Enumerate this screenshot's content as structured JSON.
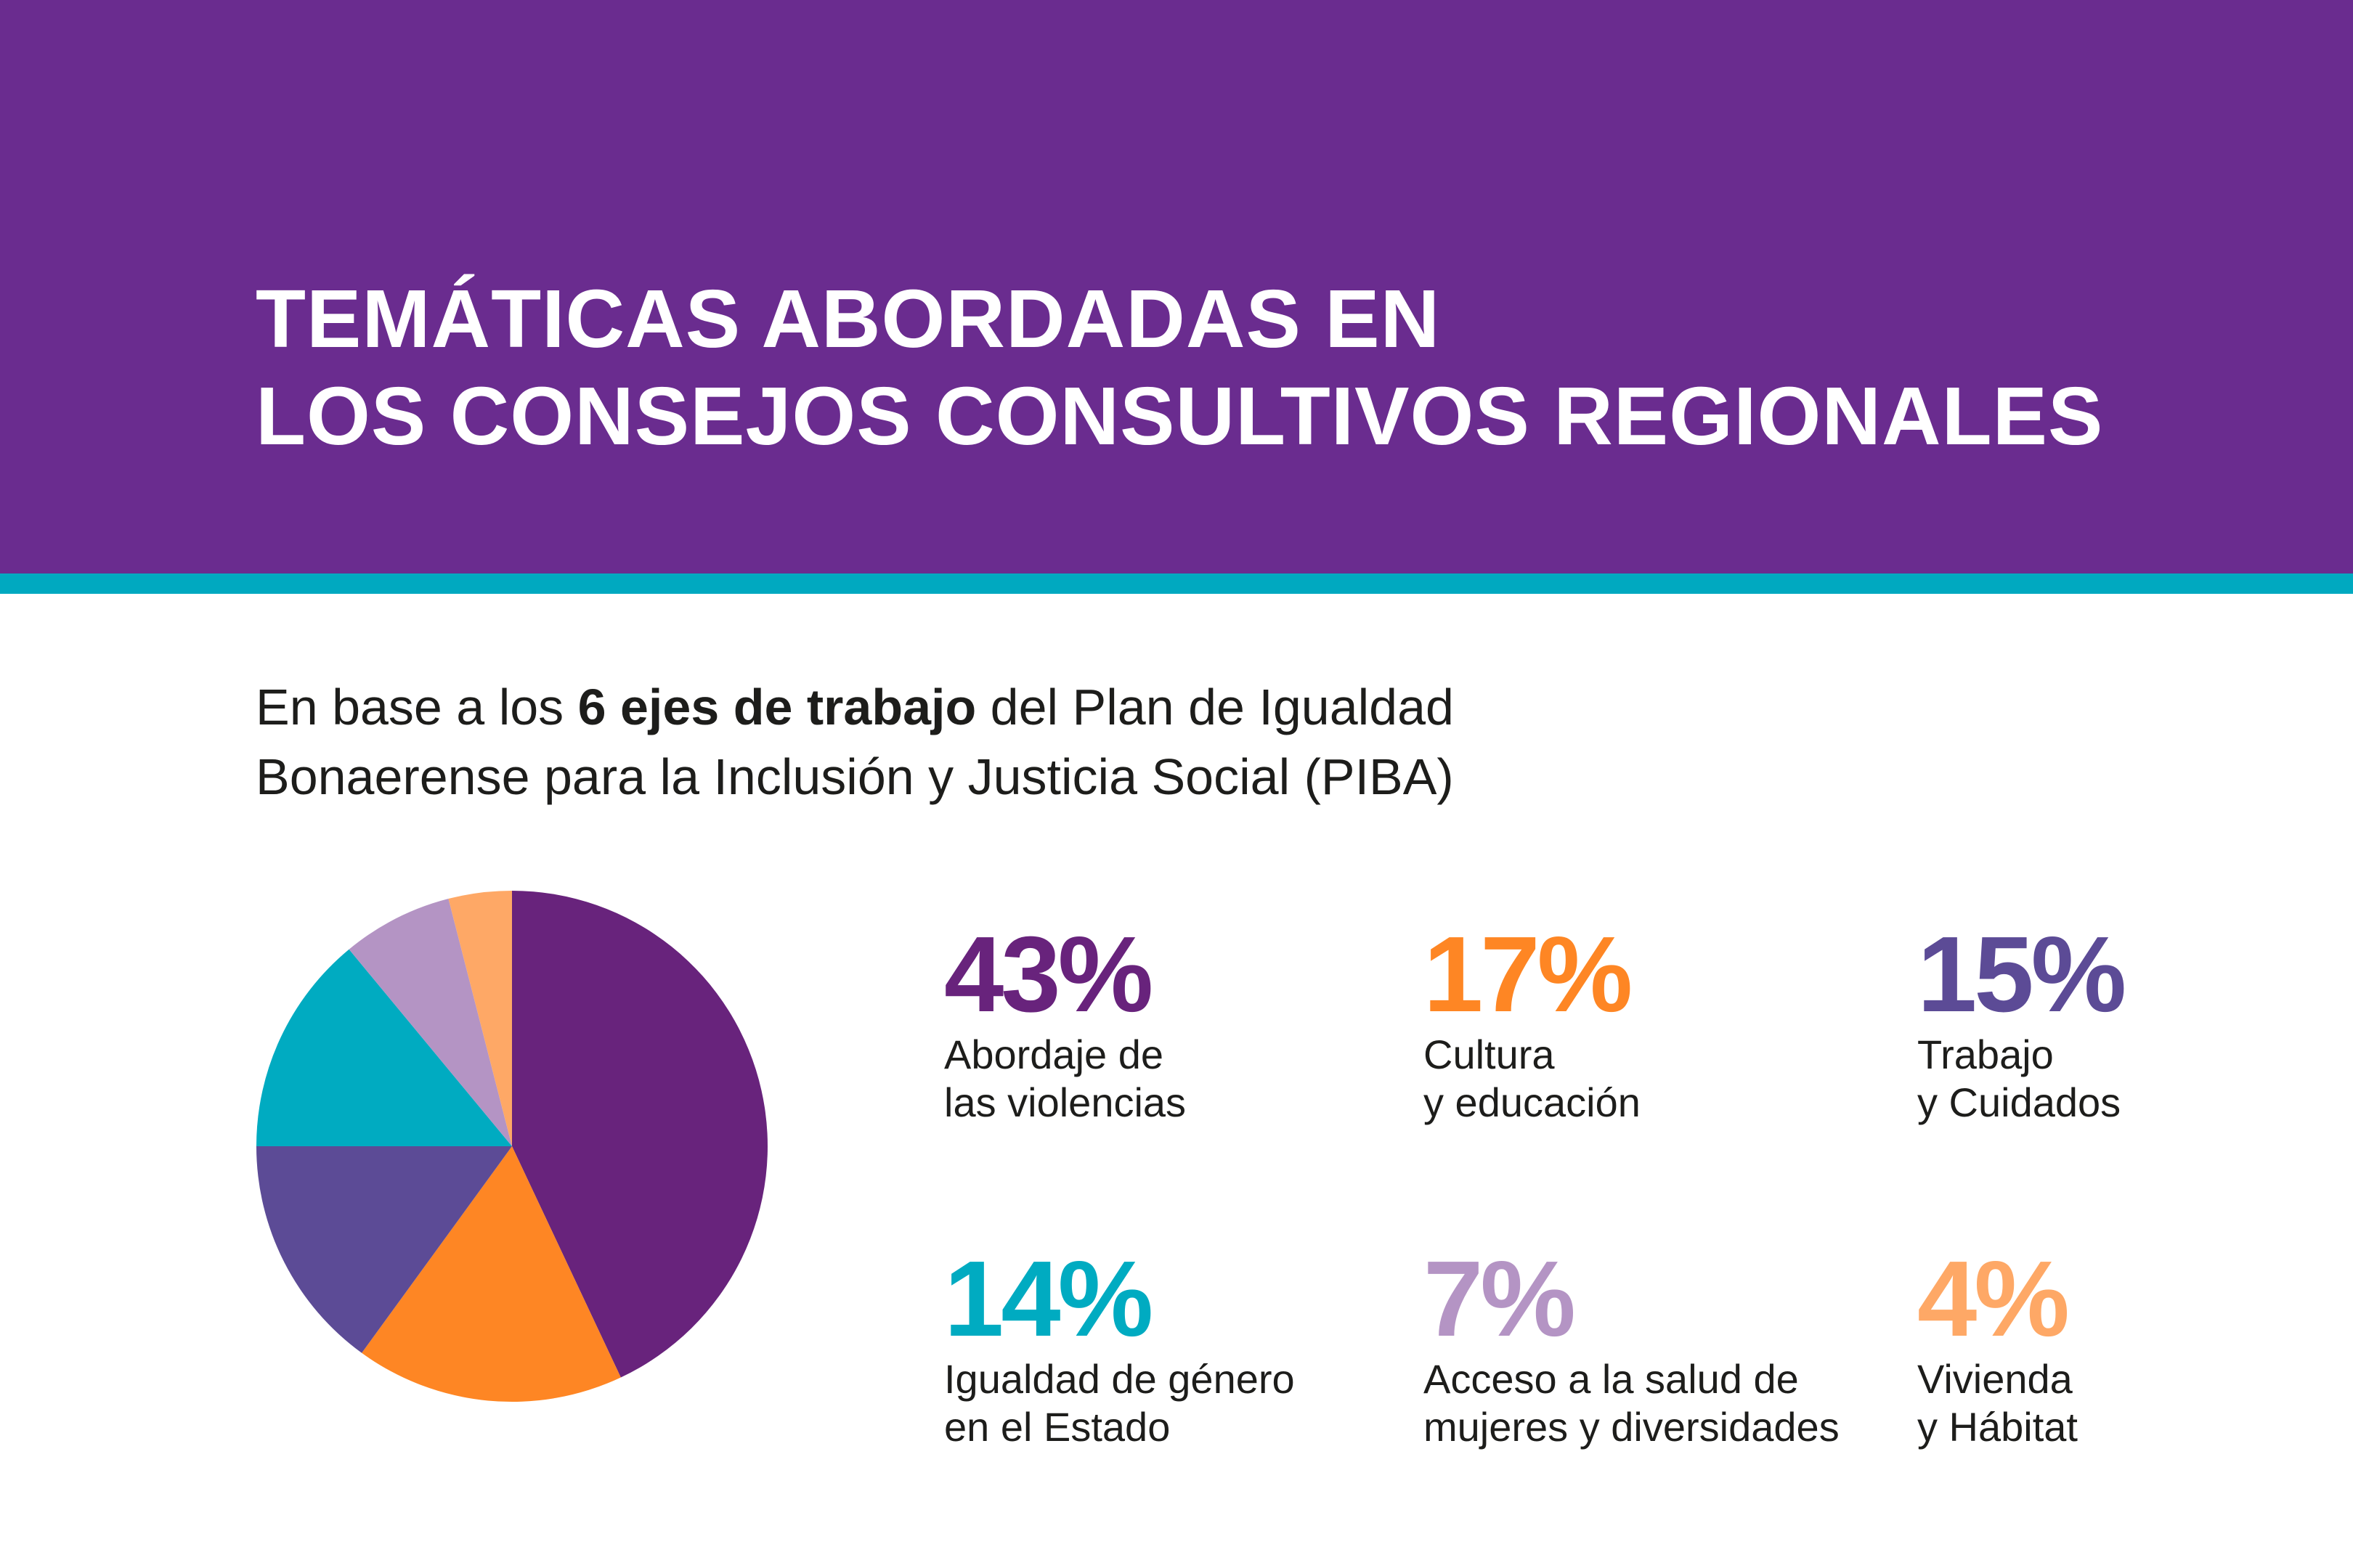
{
  "header": {
    "title_lines": [
      "TEMÁTICAS ABORDADAS EN",
      "LOS CONSEJOS CONSULTIVOS REGIONALES"
    ],
    "bg_color": "#6a2c8f",
    "stripe_color": "#00a9c0"
  },
  "subtitle": {
    "line1_pre": "En base a los ",
    "line1_bold": "6 ejes de trabajo",
    "line1_post": " del Plan de Igualdad",
    "line2": "Bonaerense para la Inclusión y Justicia Social (PIBA)"
  },
  "chart_data": {
    "type": "pie",
    "title": "TEMÁTICAS ABORDADAS EN LOS CONSEJOS CONSULTIVOS REGIONALES",
    "unit": "%",
    "slices": [
      {
        "value": 43,
        "label": "43%",
        "text_lines": [
          "Abordaje de",
          "las violencias"
        ],
        "color": "#68237c"
      },
      {
        "value": 17,
        "label": "17%",
        "text_lines": [
          "Cultura",
          "y educación"
        ],
        "color": "#fe8624"
      },
      {
        "value": 15,
        "label": "15%",
        "text_lines": [
          "Trabajo",
          "y Cuidados"
        ],
        "color": "#5c4b96"
      },
      {
        "value": 14,
        "label": "14%",
        "text_lines": [
          "Igualdad de género",
          "en el Estado"
        ],
        "color": "#00abc1"
      },
      {
        "value": 7,
        "label": "7%",
        "text_lines": [
          "Acceso a la salud de",
          "mujeres y diversidades"
        ],
        "color": "#b494c4"
      },
      {
        "value": 4,
        "label": "4%",
        "text_lines": [
          "Vivienda",
          "y Hábitat"
        ],
        "color": "#fea866"
      }
    ]
  }
}
